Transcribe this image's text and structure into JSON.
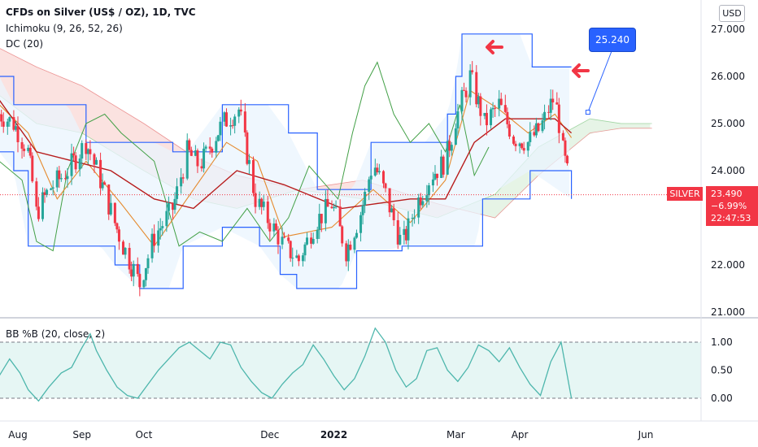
{
  "header": {
    "title": "CFDs on Silver (US$ / OZ), 1D, TVC",
    "indicator_ichimoku": "Ichimoku (9, 26, 52, 26)",
    "indicator_dc": "DC (20)",
    "currency_button": "USD"
  },
  "last_price": {
    "symbol": "SILVER",
    "price": "23.490",
    "change": "−6.99%",
    "countdown": "22:47:53"
  },
  "annotation": {
    "callout": "25.240"
  },
  "colors": {
    "up": "#26a69a",
    "down": "#f23645",
    "accent": "#2962ff",
    "bb": "#4db6ac",
    "bb_fill": "#e0f4f1",
    "dc_band": "#2962ff",
    "dc_fill": "#eaf4fd",
    "cloud_bull": "#e6f4e6",
    "cloud_bear": "#fbe2e0",
    "tenkan": "#e58a2e",
    "kijun": "#b71c1c",
    "chikou": "#43a047"
  },
  "chart_data": [
    {
      "type": "candlestick",
      "title": "CFDs on Silver (US$ / OZ), 1D, TVC",
      "x_tick_labels": [
        "Aug",
        "Sep",
        "Oct",
        "Dec",
        "2022",
        "Mar",
        "Apr",
        "Jun"
      ],
      "y_tick_labels": [
        "27.000",
        "26.000",
        "25.000",
        "24.000",
        "22.000",
        "21.000"
      ],
      "ylim": [
        20.9,
        27.7
      ],
      "grid": false,
      "last_price": 23.49,
      "price_path": [
        [
          "2021-07-23",
          25.2
        ],
        [
          "2021-07-30",
          25.0
        ],
        [
          "2021-08-06",
          24.4
        ],
        [
          "2021-08-10",
          23.1
        ],
        [
          "2021-08-16",
          23.6
        ],
        [
          "2021-08-25",
          24.0
        ],
        [
          "2021-09-03",
          24.6
        ],
        [
          "2021-09-10",
          23.8
        ],
        [
          "2021-09-20",
          22.5
        ],
        [
          "2021-09-29",
          21.6
        ],
        [
          "2021-10-06",
          22.6
        ],
        [
          "2021-10-15",
          23.2
        ],
        [
          "2021-10-22",
          24.4
        ],
        [
          "2021-10-28",
          24.1
        ],
        [
          "2021-11-08",
          25.0
        ],
        [
          "2021-11-16",
          25.3
        ],
        [
          "2021-11-24",
          23.4
        ],
        [
          "2021-12-01",
          22.9
        ],
        [
          "2021-12-08",
          22.4
        ],
        [
          "2021-12-15",
          22.1
        ],
        [
          "2021-12-23",
          22.9
        ],
        [
          "2021-12-31",
          23.3
        ],
        [
          "2022-01-07",
          22.3
        ],
        [
          "2022-01-14",
          23.1
        ],
        [
          "2022-01-20",
          24.2
        ],
        [
          "2022-01-26",
          23.5
        ],
        [
          "2022-02-03",
          22.4
        ],
        [
          "2022-02-10",
          23.3
        ],
        [
          "2022-02-17",
          23.9
        ],
        [
          "2022-02-24",
          24.2
        ],
        [
          "2022-03-01",
          25.1
        ],
        [
          "2022-03-08",
          26.0
        ],
        [
          "2022-03-15",
          25.0
        ],
        [
          "2022-03-22",
          25.4
        ],
        [
          "2022-03-29",
          24.7
        ],
        [
          "2022-04-05",
          24.6
        ],
        [
          "2022-04-11",
          24.9
        ],
        [
          "2022-04-18",
          25.6
        ],
        [
          "2022-04-22",
          24.4
        ],
        [
          "2022-04-26",
          23.49
        ]
      ],
      "donchian_upper": [
        [
          "2021-07-23",
          26.0
        ],
        [
          "2021-07-30",
          25.4
        ],
        [
          "2021-08-06",
          25.4
        ],
        [
          "2021-08-25",
          25.4
        ],
        [
          "2021-09-03",
          24.6
        ],
        [
          "2021-09-20",
          24.6
        ],
        [
          "2021-10-06",
          24.6
        ],
        [
          "2021-10-15",
          24.4
        ],
        [
          "2021-10-22",
          24.4
        ],
        [
          "2021-11-08",
          25.4
        ],
        [
          "2021-11-30",
          25.4
        ],
        [
          "2021-12-10",
          24.8
        ],
        [
          "2021-12-24",
          23.6
        ],
        [
          "2022-01-10",
          23.6
        ],
        [
          "2022-01-19",
          24.6
        ],
        [
          "2022-02-14",
          24.6
        ],
        [
          "2022-02-25",
          25.2
        ],
        [
          "2022-03-01",
          26.0
        ],
        [
          "2022-03-04",
          26.9
        ],
        [
          "2022-04-01",
          26.9
        ],
        [
          "2022-04-07",
          26.2
        ],
        [
          "2022-04-26",
          26.2
        ]
      ],
      "donchian_lower": [
        [
          "2021-07-23",
          24.4
        ],
        [
          "2021-07-30",
          24.0
        ],
        [
          "2021-08-06",
          22.4
        ],
        [
          "2021-09-10",
          22.4
        ],
        [
          "2021-09-17",
          22.0
        ],
        [
          "2021-09-29",
          21.5
        ],
        [
          "2021-10-13",
          21.5
        ],
        [
          "2021-10-20",
          22.4
        ],
        [
          "2021-11-08",
          22.8
        ],
        [
          "2021-11-26",
          22.4
        ],
        [
          "2021-12-06",
          21.8
        ],
        [
          "2021-12-14",
          21.5
        ],
        [
          "2022-01-04",
          21.5
        ],
        [
          "2022-01-12",
          22.3
        ],
        [
          "2022-01-26",
          22.3
        ],
        [
          "2022-02-03",
          22.4
        ],
        [
          "2022-02-22",
          22.4
        ],
        [
          "2022-03-11",
          22.4
        ],
        [
          "2022-03-14",
          23.4
        ],
        [
          "2022-04-06",
          24.0
        ],
        [
          "2022-04-26",
          23.4
        ]
      ],
      "senkou_a": [
        [
          "2021-07-23",
          25.6
        ],
        [
          "2021-08-10",
          25.0
        ],
        [
          "2021-09-01",
          24.8
        ],
        [
          "2021-10-01",
          24.0
        ],
        [
          "2021-10-25",
          23.4
        ],
        [
          "2021-11-15",
          23.2
        ],
        [
          "2021-12-15",
          23.6
        ],
        [
          "2022-01-15",
          23.4
        ],
        [
          "2022-02-20",
          23.0
        ],
        [
          "2022-03-20",
          23.5
        ],
        [
          "2022-04-10",
          24.5
        ],
        [
          "2022-05-05",
          25.1
        ],
        [
          "2022-05-20",
          25.0
        ],
        [
          "2022-06-04",
          25.0
        ]
      ],
      "senkou_b": [
        [
          "2021-07-23",
          26.6
        ],
        [
          "2021-08-10",
          26.2
        ],
        [
          "2021-09-01",
          25.8
        ],
        [
          "2021-10-01",
          25.0
        ],
        [
          "2021-10-25",
          24.3
        ],
        [
          "2021-11-15",
          23.9
        ],
        [
          "2021-12-15",
          23.6
        ],
        [
          "2022-01-15",
          23.8
        ],
        [
          "2022-02-20",
          23.3
        ],
        [
          "2022-03-20",
          23.0
        ],
        [
          "2022-04-10",
          23.9
        ],
        [
          "2022-05-05",
          24.8
        ],
        [
          "2022-05-20",
          24.9
        ],
        [
          "2022-06-04",
          24.9
        ]
      ],
      "tenkan": [
        [
          "2021-07-23",
          25.4
        ],
        [
          "2021-08-06",
          24.8
        ],
        [
          "2021-08-20",
          23.4
        ],
        [
          "2021-09-03",
          24.2
        ],
        [
          "2021-09-20",
          23.3
        ],
        [
          "2021-10-06",
          22.4
        ],
        [
          "2021-10-25",
          23.6
        ],
        [
          "2021-11-10",
          24.6
        ],
        [
          "2021-11-25",
          24.2
        ],
        [
          "2021-12-08",
          22.6
        ],
        [
          "2021-12-31",
          22.8
        ],
        [
          "2022-01-20",
          23.6
        ],
        [
          "2022-02-07",
          22.9
        ],
        [
          "2022-02-24",
          23.8
        ],
        [
          "2022-03-08",
          25.7
        ],
        [
          "2022-03-22",
          25.3
        ],
        [
          "2022-04-05",
          24.8
        ],
        [
          "2022-04-18",
          25.2
        ],
        [
          "2022-04-26",
          24.7
        ]
      ],
      "kijun": [
        [
          "2021-07-23",
          25.5
        ],
        [
          "2021-08-10",
          24.4
        ],
        [
          "2021-09-15",
          24.0
        ],
        [
          "2021-10-06",
          23.4
        ],
        [
          "2021-10-25",
          23.2
        ],
        [
          "2021-11-15",
          24.0
        ],
        [
          "2021-12-08",
          23.7
        ],
        [
          "2022-01-05",
          23.2
        ],
        [
          "2022-02-07",
          23.4
        ],
        [
          "2022-02-24",
          23.4
        ],
        [
          "2022-03-10",
          24.6
        ],
        [
          "2022-03-25",
          25.1
        ],
        [
          "2022-04-18",
          25.1
        ],
        [
          "2022-04-26",
          24.8
        ]
      ],
      "chikou": [
        [
          "2021-07-23",
          24.2
        ],
        [
          "2021-08-03",
          23.8
        ],
        [
          "2021-08-10",
          22.5
        ],
        [
          "2021-08-18",
          22.3
        ],
        [
          "2021-08-25",
          24.0
        ],
        [
          "2021-09-03",
          25.0
        ],
        [
          "2021-09-12",
          25.2
        ],
        [
          "2021-09-20",
          24.8
        ],
        [
          "2021-10-06",
          24.2
        ],
        [
          "2021-10-18",
          22.4
        ],
        [
          "2021-10-28",
          22.7
        ],
        [
          "2021-11-08",
          22.5
        ],
        [
          "2021-11-20",
          23.2
        ],
        [
          "2021-12-01",
          22.5
        ],
        [
          "2021-12-10",
          23.0
        ],
        [
          "2021-12-20",
          24.1
        ],
        [
          "2022-01-03",
          23.4
        ],
        [
          "2022-01-10",
          24.8
        ],
        [
          "2022-01-16",
          25.8
        ],
        [
          "2022-01-22",
          26.3
        ],
        [
          "2022-01-30",
          25.2
        ],
        [
          "2022-02-07",
          24.6
        ],
        [
          "2022-02-16",
          25.0
        ],
        [
          "2022-02-24",
          24.4
        ],
        [
          "2022-03-03",
          25.4
        ],
        [
          "2022-03-10",
          23.9
        ],
        [
          "2022-03-17",
          24.5
        ]
      ],
      "callout_label": "25.240",
      "callout_anchor": [
        "2022-05-04",
        25.24
      ]
    },
    {
      "type": "line",
      "title": "BB %B (20, close, 2)",
      "y_tick_labels": [
        "1.00",
        "0.50",
        "0.00"
      ],
      "ylim": [
        -0.22,
        1.32
      ],
      "reference_lines": [
        1.0,
        0.0
      ],
      "x": [
        "2021-07-23",
        "2021-07-28",
        "2021-08-02",
        "2021-08-06",
        "2021-08-11",
        "2021-08-16",
        "2021-08-22",
        "2021-08-27",
        "2021-09-01",
        "2021-09-05",
        "2021-09-08",
        "2021-09-13",
        "2021-09-18",
        "2021-09-23",
        "2021-09-28",
        "2021-10-03",
        "2021-10-08",
        "2021-10-13",
        "2021-10-18",
        "2021-10-23",
        "2021-10-28",
        "2021-11-02",
        "2021-11-07",
        "2021-11-12",
        "2021-11-17",
        "2021-11-22",
        "2021-11-27",
        "2021-12-02",
        "2021-12-07",
        "2021-12-12",
        "2021-12-17",
        "2021-12-22",
        "2021-12-27",
        "2022-01-01",
        "2022-01-06",
        "2022-01-11",
        "2022-01-16",
        "2022-01-21",
        "2022-01-26",
        "2022-01-31",
        "2022-02-05",
        "2022-02-10",
        "2022-02-15",
        "2022-02-20",
        "2022-02-25",
        "2022-03-02",
        "2022-03-07",
        "2022-03-12",
        "2022-03-17",
        "2022-03-22",
        "2022-03-27",
        "2022-04-01",
        "2022-04-06",
        "2022-04-11",
        "2022-04-16",
        "2022-04-21",
        "2022-04-26"
      ],
      "values": [
        0.4,
        0.7,
        0.45,
        0.15,
        -0.05,
        0.2,
        0.45,
        0.55,
        0.9,
        1.15,
        0.85,
        0.5,
        0.2,
        0.05,
        0.0,
        0.25,
        0.5,
        0.7,
        0.9,
        1.0,
        0.85,
        0.7,
        1.0,
        0.95,
        0.55,
        0.3,
        0.1,
        0.0,
        0.25,
        0.45,
        0.6,
        0.95,
        0.7,
        0.4,
        0.15,
        0.35,
        0.75,
        1.25,
        1.0,
        0.5,
        0.2,
        0.35,
        0.85,
        0.9,
        0.5,
        0.3,
        0.55,
        0.95,
        0.85,
        0.65,
        0.9,
        0.55,
        0.25,
        0.05,
        0.65,
        1.0,
        0.0
      ]
    }
  ]
}
